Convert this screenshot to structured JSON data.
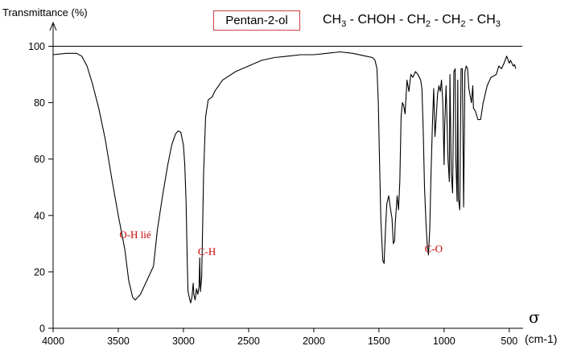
{
  "chart_data": {
    "type": "line",
    "ylabel": "Transmittance  (%)",
    "xlabel_symbol": "σ",
    "xlabel_unit": "(cm-1)",
    "xlim": [
      4000,
      400
    ],
    "ylim": [
      0,
      100
    ],
    "x_ticks": [
      4000,
      3500,
      3000,
      2500,
      2000,
      1500,
      1000,
      500
    ],
    "y_ticks": [
      0,
      20,
      40,
      60,
      80,
      100
    ],
    "compound_name": "Pentan-2-ol",
    "formula_parts": [
      "CH",
      "3",
      " - CHOH - CH",
      "2",
      " - CH",
      "2",
      " - CH",
      "3"
    ],
    "annotations": [
      {
        "text": "O-H lié",
        "x": 3370,
        "y": 32
      },
      {
        "text": "C-H",
        "x": 2820,
        "y": 26
      },
      {
        "text": "C-O",
        "x": 1080,
        "y": 27
      }
    ],
    "colors": {
      "curve": "#000000",
      "annotation": "#cc0000",
      "box_border": "#d04040"
    },
    "series": [
      {
        "points": [
          [
            4000,
            97
          ],
          [
            3900,
            97.5
          ],
          [
            3820,
            97.5
          ],
          [
            3780,
            96.5
          ],
          [
            3740,
            93
          ],
          [
            3700,
            87
          ],
          [
            3650,
            78
          ],
          [
            3600,
            67
          ],
          [
            3550,
            53
          ],
          [
            3500,
            40
          ],
          [
            3450,
            28
          ],
          [
            3420,
            17
          ],
          [
            3390,
            11
          ],
          [
            3370,
            10
          ],
          [
            3330,
            12
          ],
          [
            3280,
            17
          ],
          [
            3230,
            22
          ],
          [
            3200,
            35
          ],
          [
            3160,
            47
          ],
          [
            3120,
            58
          ],
          [
            3090,
            65
          ],
          [
            3060,
            69
          ],
          [
            3040,
            70
          ],
          [
            3020,
            69.5
          ],
          [
            3000,
            65
          ],
          [
            2990,
            58
          ],
          [
            2980,
            45
          ],
          [
            2970,
            22
          ],
          [
            2965,
            13
          ],
          [
            2955,
            11
          ],
          [
            2945,
            9
          ],
          [
            2935,
            11
          ],
          [
            2925,
            16
          ],
          [
            2920,
            12
          ],
          [
            2910,
            10
          ],
          [
            2900,
            14
          ],
          [
            2890,
            12
          ],
          [
            2880,
            15
          ],
          [
            2875,
            25
          ],
          [
            2870,
            13
          ],
          [
            2860,
            18
          ],
          [
            2855,
            30
          ],
          [
            2845,
            55
          ],
          [
            2830,
            75
          ],
          [
            2810,
            81
          ],
          [
            2780,
            82
          ],
          [
            2760,
            84
          ],
          [
            2700,
            88
          ],
          [
            2600,
            91
          ],
          [
            2500,
            93
          ],
          [
            2400,
            95
          ],
          [
            2300,
            96
          ],
          [
            2200,
            96.5
          ],
          [
            2100,
            97
          ],
          [
            2000,
            97
          ],
          [
            1900,
            97.5
          ],
          [
            1800,
            98
          ],
          [
            1700,
            97.5
          ],
          [
            1600,
            96.5
          ],
          [
            1550,
            96
          ],
          [
            1530,
            95
          ],
          [
            1515,
            92
          ],
          [
            1505,
            80
          ],
          [
            1495,
            58
          ],
          [
            1485,
            38
          ],
          [
            1470,
            24
          ],
          [
            1460,
            23
          ],
          [
            1450,
            35
          ],
          [
            1440,
            44
          ],
          [
            1425,
            47
          ],
          [
            1410,
            42
          ],
          [
            1400,
            39
          ],
          [
            1390,
            30
          ],
          [
            1380,
            31
          ],
          [
            1375,
            37
          ],
          [
            1360,
            47
          ],
          [
            1350,
            42
          ],
          [
            1340,
            52
          ],
          [
            1330,
            75
          ],
          [
            1320,
            80
          ],
          [
            1310,
            79
          ],
          [
            1300,
            76
          ],
          [
            1285,
            88
          ],
          [
            1270,
            84
          ],
          [
            1255,
            90
          ],
          [
            1240,
            89
          ],
          [
            1220,
            91
          ],
          [
            1200,
            90
          ],
          [
            1180,
            88
          ],
          [
            1170,
            85
          ],
          [
            1160,
            70
          ],
          [
            1150,
            50
          ],
          [
            1140,
            38
          ],
          [
            1130,
            30
          ],
          [
            1120,
            26
          ],
          [
            1110,
            35
          ],
          [
            1100,
            55
          ],
          [
            1090,
            72
          ],
          [
            1080,
            85
          ],
          [
            1070,
            68
          ],
          [
            1060,
            75
          ],
          [
            1050,
            83
          ],
          [
            1040,
            86
          ],
          [
            1030,
            84
          ],
          [
            1020,
            88
          ],
          [
            1010,
            80
          ],
          [
            1000,
            58
          ],
          [
            995,
            72
          ],
          [
            985,
            86
          ],
          [
            970,
            60
          ],
          [
            960,
            52
          ],
          [
            955,
            90
          ],
          [
            945,
            55
          ],
          [
            935,
            48
          ],
          [
            925,
            91
          ],
          [
            915,
            92
          ],
          [
            910,
            60
          ],
          [
            900,
            45
          ],
          [
            895,
            88
          ],
          [
            890,
            46
          ],
          [
            880,
            42
          ],
          [
            870,
            92
          ],
          [
            860,
            92
          ],
          [
            850,
            43
          ],
          [
            840,
            91
          ],
          [
            830,
            93
          ],
          [
            820,
            92
          ],
          [
            810,
            85
          ],
          [
            790,
            80
          ],
          [
            780,
            86
          ],
          [
            775,
            78
          ],
          [
            760,
            77
          ],
          [
            740,
            74
          ],
          [
            720,
            74
          ],
          [
            700,
            80
          ],
          [
            670,
            86
          ],
          [
            640,
            89
          ],
          [
            600,
            90
          ],
          [
            580,
            93
          ],
          [
            560,
            92
          ],
          [
            540,
            94
          ],
          [
            520,
            96.5
          ],
          [
            500,
            94
          ],
          [
            490,
            95
          ],
          [
            470,
            93
          ],
          [
            460,
            93.5
          ],
          [
            450,
            92
          ]
        ]
      }
    ]
  }
}
